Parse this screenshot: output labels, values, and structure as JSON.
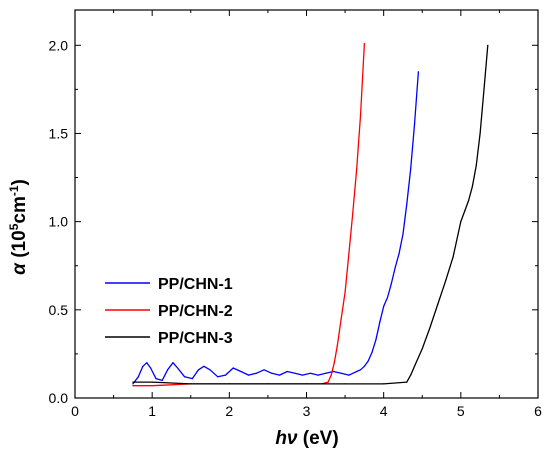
{
  "chart_data": {
    "type": "line",
    "xlabel": {
      "italic": "hν",
      "rest": " (eV)"
    },
    "ylabel": {
      "symbol": "α",
      "open": " (10",
      "sup1": "5",
      "mid": "cm",
      "sup2": "-1",
      "close": ")"
    },
    "xlim": [
      0,
      6
    ],
    "ylim": [
      0,
      2.2
    ],
    "xticks": [
      "0",
      "1",
      "2",
      "3",
      "4",
      "5",
      "6"
    ],
    "yticks": [
      "0.0",
      "0.5",
      "1.0",
      "1.5",
      "2.0"
    ],
    "legend_position": "lower-left",
    "grid": false,
    "series": [
      {
        "name": "PP/CHN-1",
        "color": "#0000ff",
        "x": [
          0.75,
          0.82,
          0.88,
          0.93,
          0.98,
          1.05,
          1.13,
          1.2,
          1.27,
          1.33,
          1.42,
          1.52,
          1.6,
          1.67,
          1.75,
          1.85,
          1.95,
          2.05,
          2.15,
          2.25,
          2.35,
          2.45,
          2.55,
          2.65,
          2.75,
          2.85,
          2.95,
          3.05,
          3.15,
          3.25,
          3.35,
          3.45,
          3.55,
          3.6,
          3.65,
          3.7,
          3.75,
          3.8,
          3.85,
          3.9,
          3.95,
          4.0,
          4.05,
          4.1,
          4.15,
          4.2,
          4.25,
          4.3,
          4.35,
          4.4,
          4.45
        ],
        "y": [
          0.08,
          0.12,
          0.18,
          0.2,
          0.17,
          0.11,
          0.1,
          0.16,
          0.2,
          0.17,
          0.12,
          0.11,
          0.16,
          0.18,
          0.16,
          0.12,
          0.13,
          0.17,
          0.15,
          0.13,
          0.14,
          0.16,
          0.14,
          0.13,
          0.15,
          0.14,
          0.13,
          0.14,
          0.13,
          0.14,
          0.15,
          0.14,
          0.13,
          0.14,
          0.15,
          0.16,
          0.18,
          0.21,
          0.26,
          0.33,
          0.43,
          0.52,
          0.57,
          0.65,
          0.74,
          0.82,
          0.93,
          1.1,
          1.3,
          1.55,
          1.85
        ]
      },
      {
        "name": "PP/CHN-2",
        "color": "#ff0000",
        "x": [
          0.75,
          1.0,
          1.5,
          2.0,
          2.5,
          3.0,
          3.2,
          3.28,
          3.32,
          3.36,
          3.4,
          3.45,
          3.5,
          3.55,
          3.6,
          3.65,
          3.7,
          3.75
        ],
        "y": [
          0.07,
          0.07,
          0.08,
          0.08,
          0.08,
          0.08,
          0.08,
          0.09,
          0.13,
          0.2,
          0.3,
          0.45,
          0.6,
          0.82,
          1.05,
          1.3,
          1.6,
          2.01
        ]
      },
      {
        "name": "PP/CHN-3",
        "color": "#000000",
        "x": [
          0.75,
          1.0,
          1.5,
          2.0,
          2.5,
          3.0,
          3.5,
          4.0,
          4.3,
          4.35,
          4.4,
          4.5,
          4.6,
          4.7,
          4.8,
          4.9,
          5.0,
          5.05,
          5.1,
          5.15,
          5.2,
          5.25,
          5.3,
          5.35
        ],
        "y": [
          0.09,
          0.09,
          0.08,
          0.08,
          0.08,
          0.08,
          0.08,
          0.08,
          0.09,
          0.13,
          0.18,
          0.28,
          0.4,
          0.53,
          0.66,
          0.8,
          1.0,
          1.06,
          1.12,
          1.2,
          1.32,
          1.5,
          1.75,
          2.0
        ]
      }
    ]
  }
}
